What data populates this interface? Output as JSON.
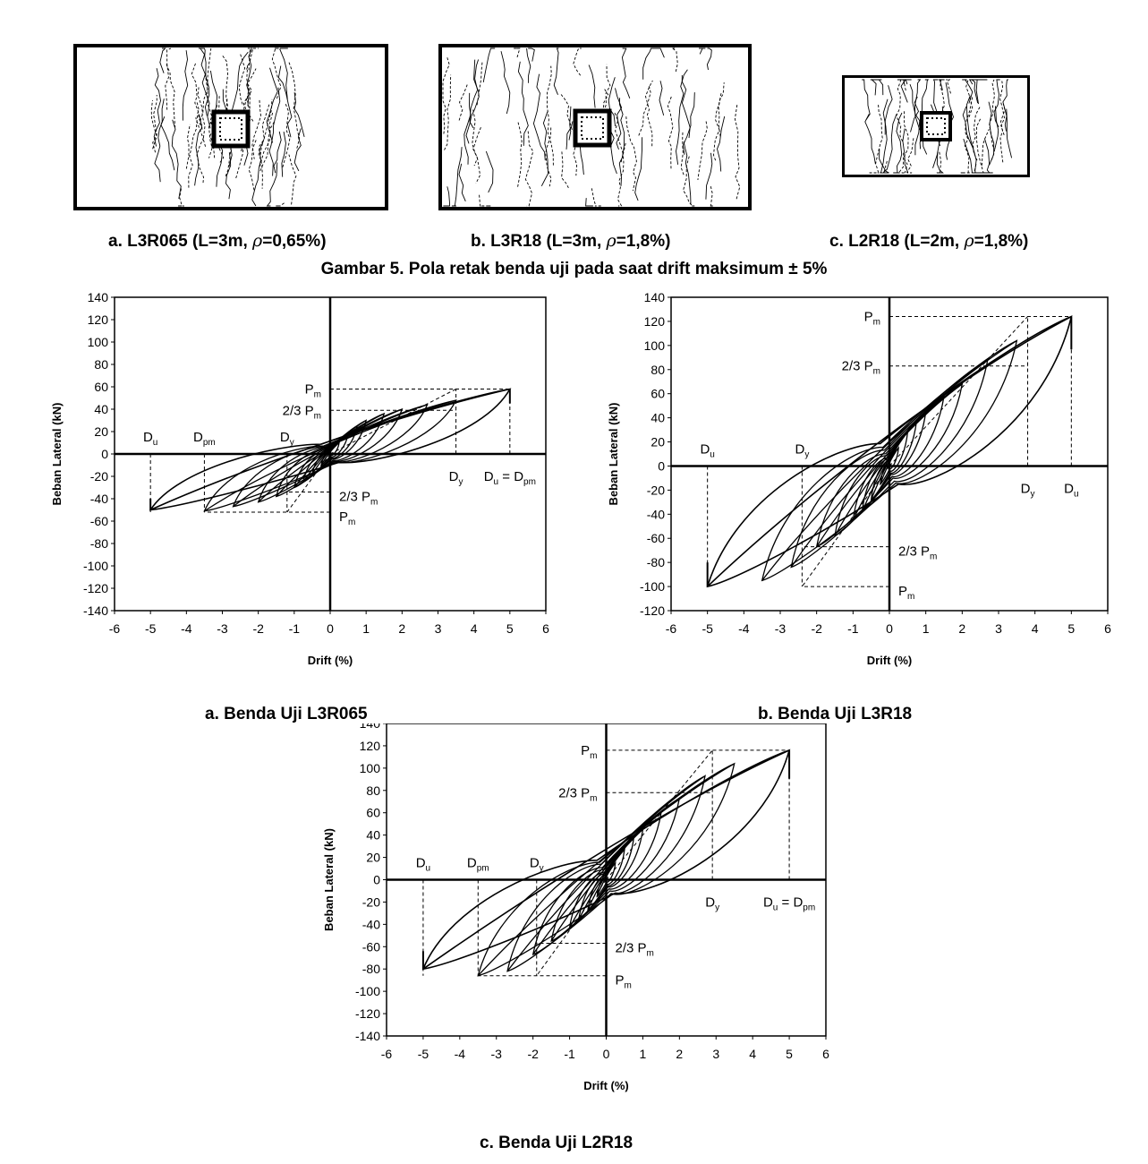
{
  "crack_patterns": {
    "caption": "Gambar 5. Pola retak benda uji pada saat drift maksimum ± 5%",
    "panels": [
      {
        "prefix": "a. L3R065 (L=3m, ",
        "rho": "ρ",
        "suffix": "=0,65%)"
      },
      {
        "prefix": "b. L3R18 (L=3m, ",
        "rho": "ρ",
        "suffix": "=1,8%)"
      },
      {
        "prefix": "c. L2R18 (L=2m, ",
        "rho": "ρ",
        "suffix": "=1,8%)"
      }
    ]
  },
  "chart_data": [
    {
      "type": "line",
      "title": "a. Benda Uji L3R065",
      "xlabel": "Drift (%)",
      "ylabel": "Beban Lateral (kN)",
      "xlim": [
        -6,
        6
      ],
      "ylim": [
        -140,
        140
      ],
      "xticks": [
        -6,
        -5,
        -4,
        -3,
        -2,
        -1,
        0,
        1,
        2,
        3,
        4,
        5,
        6
      ],
      "yticks": [
        140,
        120,
        100,
        80,
        60,
        40,
        20,
        0,
        -20,
        -40,
        -60,
        -80,
        -100,
        -120,
        -140
      ],
      "grid": false,
      "hysteresis_peaks": {
        "positive": [
          [
            0.25,
            10
          ],
          [
            0.5,
            18
          ],
          [
            0.75,
            25
          ],
          [
            1.0,
            30
          ],
          [
            1.5,
            36
          ],
          [
            2.0,
            40
          ],
          [
            2.7,
            44
          ],
          [
            3.5,
            48
          ],
          [
            5.0,
            58
          ]
        ],
        "negative": [
          [
            -0.25,
            -10
          ],
          [
            -0.5,
            -18
          ],
          [
            -0.75,
            -25
          ],
          [
            -1.0,
            -30
          ],
          [
            -1.5,
            -38
          ],
          [
            -2.0,
            -43
          ],
          [
            -2.7,
            -47
          ],
          [
            -3.5,
            -51
          ],
          [
            -5.0,
            -50
          ]
        ]
      },
      "annotations": [
        {
          "text": "P",
          "sub": "m",
          "x": 5.0,
          "y": 58
        },
        {
          "text": "2/3  P",
          "sub": "m",
          "x": 3.5,
          "y": 39
        },
        {
          "text": "D",
          "sub": "y",
          "x": 3.5,
          "y": 0
        },
        {
          "text": "D",
          "sub": "u",
          "text2": " = D",
          "sub2": "pm",
          "x": 5.0,
          "y": 0
        },
        {
          "text": "D",
          "sub": "u",
          "x": -5.0,
          "y": 0
        },
        {
          "text": "D",
          "sub": "pm",
          "x": -3.5,
          "y": 0
        },
        {
          "text": "D",
          "sub": "y",
          "x": -1.2,
          "y": 0
        },
        {
          "text": "2/3  P",
          "sub": "m",
          "x": -1.2,
          "y": -34
        },
        {
          "text": "P",
          "sub": "m",
          "x": -3.5,
          "y": -52
        }
      ]
    },
    {
      "type": "line",
      "title": "b. Benda Uji L3R18",
      "xlabel": "Drift (%)",
      "ylabel": "Beban Lateral (kN)",
      "xlim": [
        -6,
        6
      ],
      "ylim": [
        -120,
        140
      ],
      "xticks": [
        -6,
        -5,
        -4,
        -3,
        -2,
        -1,
        0,
        1,
        2,
        3,
        4,
        5,
        6
      ],
      "yticks": [
        140,
        120,
        100,
        80,
        60,
        40,
        20,
        0,
        -20,
        -40,
        -60,
        -80,
        -100,
        -120
      ],
      "grid": false,
      "hysteresis_peaks": {
        "positive": [
          [
            0.25,
            15
          ],
          [
            0.5,
            28
          ],
          [
            0.75,
            38
          ],
          [
            1.0,
            45
          ],
          [
            1.5,
            58
          ],
          [
            2.0,
            68
          ],
          [
            2.7,
            88
          ],
          [
            3.5,
            104
          ],
          [
            5.0,
            124
          ]
        ],
        "negative": [
          [
            -0.25,
            -15
          ],
          [
            -0.5,
            -28
          ],
          [
            -0.75,
            -38
          ],
          [
            -1.0,
            -45
          ],
          [
            -1.5,
            -58
          ],
          [
            -2.0,
            -67
          ],
          [
            -2.7,
            -84
          ],
          [
            -3.5,
            -95
          ],
          [
            -5.0,
            -100
          ]
        ]
      },
      "annotations": [
        {
          "text": "P",
          "sub": "m",
          "x": 5.0,
          "y": 124
        },
        {
          "text": "2/3  P",
          "sub": "m",
          "x": 3.8,
          "y": 83
        },
        {
          "text": "D",
          "sub": "y",
          "x": 3.8,
          "y": 0
        },
        {
          "text": "D",
          "sub": "u",
          "x": 5.0,
          "y": 0
        },
        {
          "text": "D",
          "sub": "u",
          "x": -5.0,
          "y": 0
        },
        {
          "text": "D",
          "sub": "y",
          "x": -2.4,
          "y": 0
        },
        {
          "text": "2/3  P",
          "sub": "m",
          "x": -2.4,
          "y": -67
        },
        {
          "text": "P",
          "sub": "m",
          "x": -2.4,
          "y": -100
        }
      ]
    },
    {
      "type": "line",
      "title": "c. Benda Uji L2R18",
      "xlabel": "Drift (%)",
      "ylabel": "Beban Lateral (kN)",
      "xlim": [
        -6,
        6
      ],
      "ylim": [
        -140,
        140
      ],
      "xticks": [
        -6,
        -5,
        -4,
        -3,
        -2,
        -1,
        0,
        1,
        2,
        3,
        4,
        5,
        6
      ],
      "yticks": [
        140,
        120,
        100,
        80,
        60,
        40,
        20,
        0,
        -20,
        -40,
        -60,
        -80,
        -100,
        -120,
        -140
      ],
      "grid": false,
      "hysteresis_peaks": {
        "positive": [
          [
            0.25,
            15
          ],
          [
            0.5,
            27
          ],
          [
            0.75,
            37
          ],
          [
            1.0,
            45
          ],
          [
            1.5,
            60
          ],
          [
            2.0,
            73
          ],
          [
            2.7,
            93
          ],
          [
            3.5,
            104
          ],
          [
            5.0,
            116
          ]
        ],
        "negative": [
          [
            -0.25,
            -15
          ],
          [
            -0.5,
            -27
          ],
          [
            -0.75,
            -36
          ],
          [
            -1.0,
            -43
          ],
          [
            -1.5,
            -55
          ],
          [
            -2.0,
            -67
          ],
          [
            -2.7,
            -82
          ],
          [
            -3.5,
            -86
          ],
          [
            -5.0,
            -80
          ]
        ]
      },
      "annotations": [
        {
          "text": "P",
          "sub": "m",
          "x": 5.0,
          "y": 116
        },
        {
          "text": "2/3  P",
          "sub": "m",
          "x": 2.9,
          "y": 78
        },
        {
          "text": "D",
          "sub": "y",
          "x": 2.9,
          "y": 0
        },
        {
          "text": "D",
          "sub": "u",
          "text2": " = D",
          "sub2": "pm",
          "x": 5.0,
          "y": 0
        },
        {
          "text": "D",
          "sub": "u",
          "x": -5.0,
          "y": 0
        },
        {
          "text": "D",
          "sub": "pm",
          "x": -3.5,
          "y": 0
        },
        {
          "text": "D",
          "sub": "y",
          "x": -1.9,
          "y": 0
        },
        {
          "text": "2/3  P",
          "sub": "m",
          "x": -1.9,
          "y": -57
        },
        {
          "text": "P",
          "sub": "m",
          "x": -3.5,
          "y": -86
        }
      ]
    }
  ]
}
